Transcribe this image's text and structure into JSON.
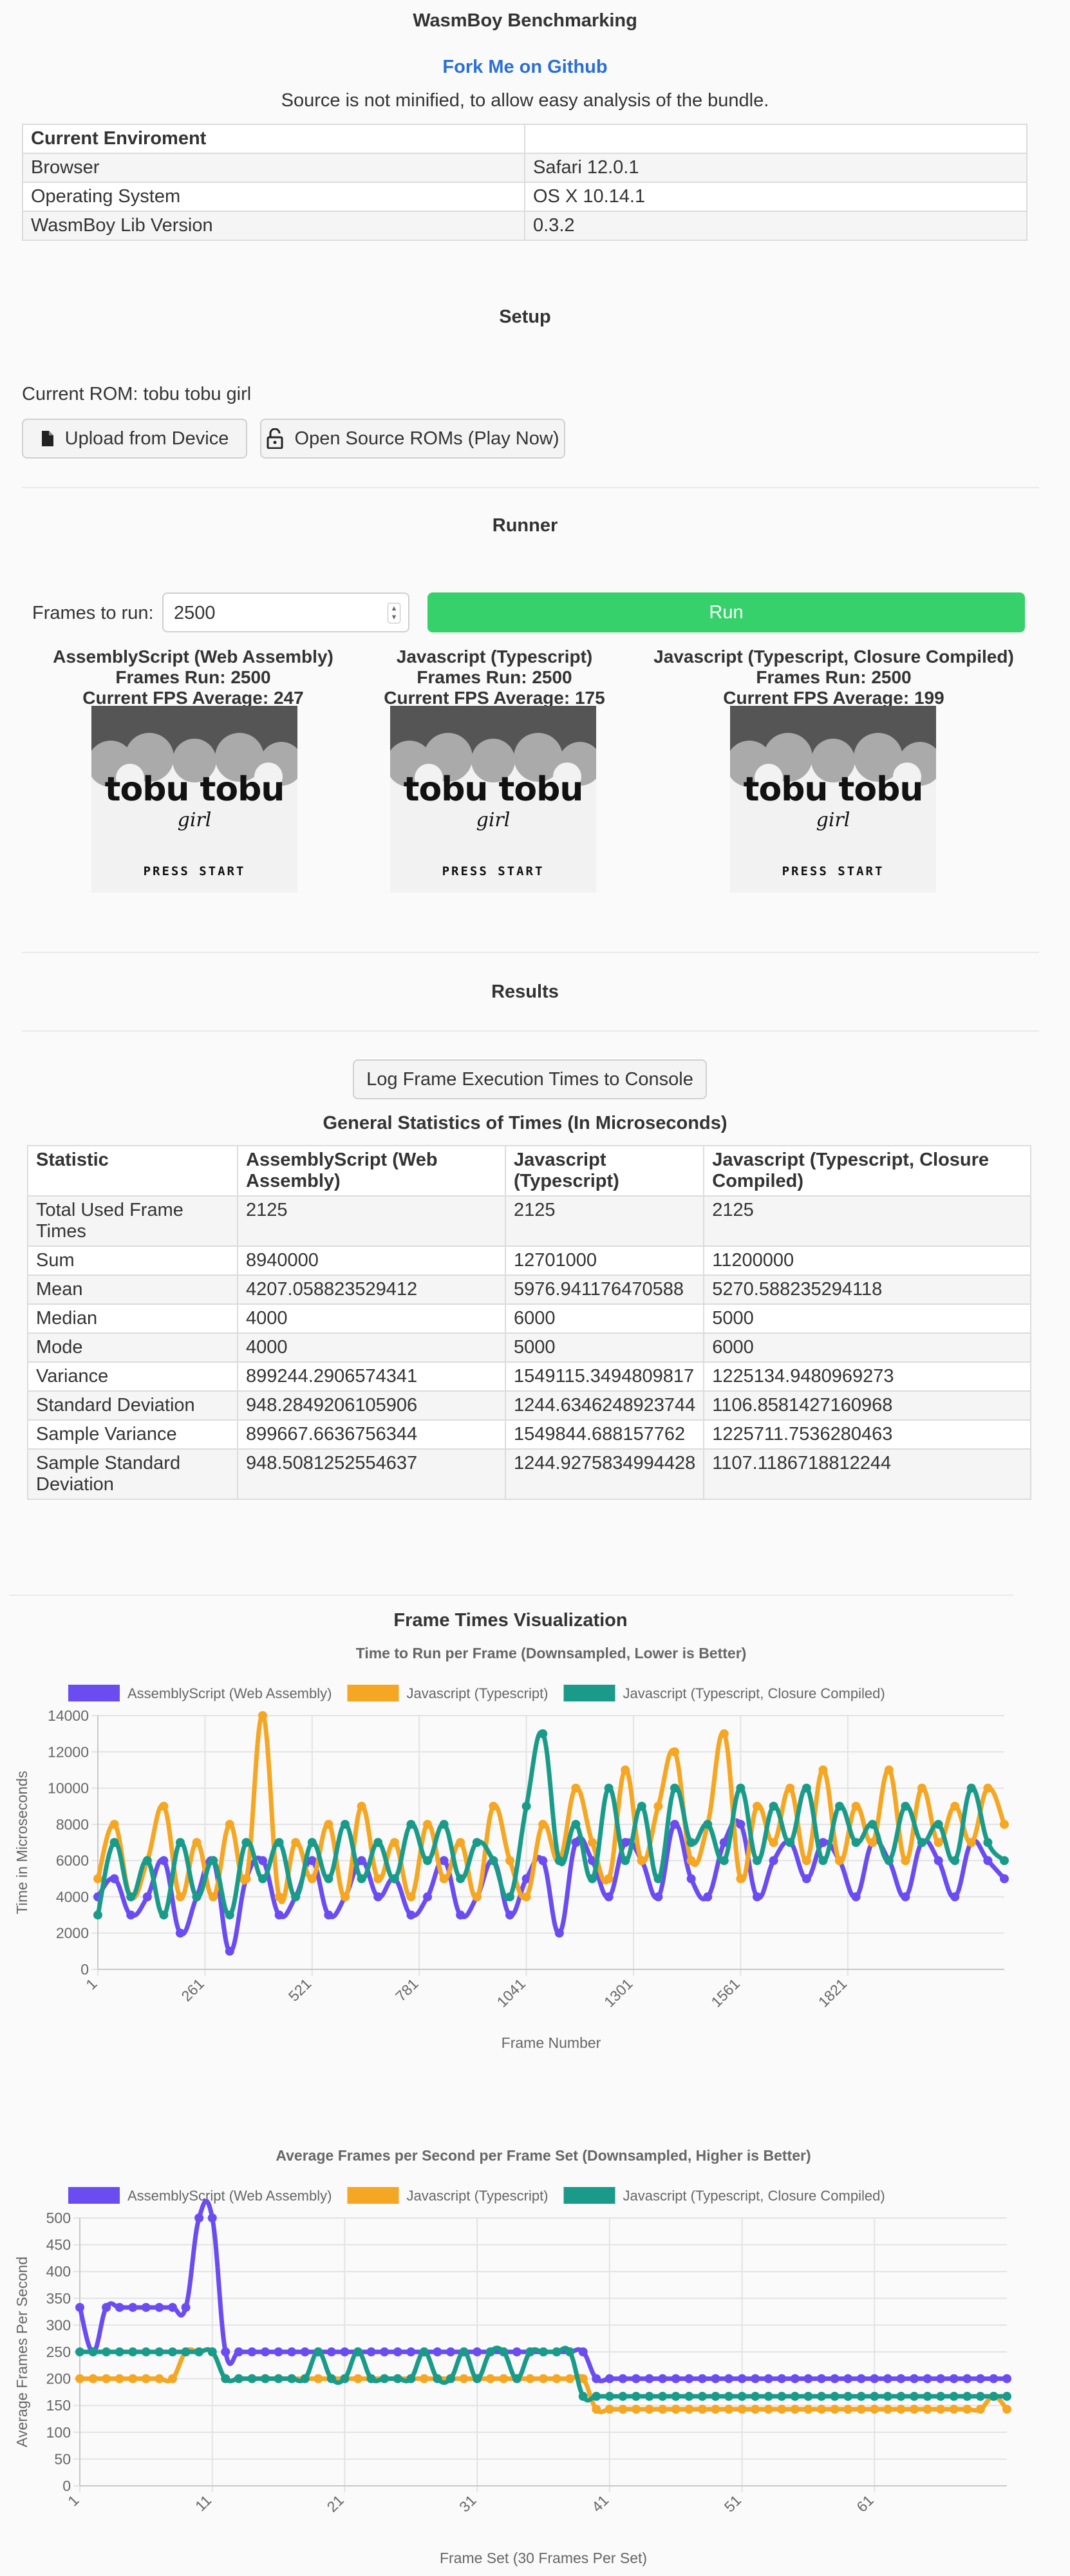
{
  "header": {
    "title": "WasmBoy Benchmarking",
    "fork_link": "Fork Me on Github",
    "note": "Source is not minified, to allow easy analysis of the bundle."
  },
  "environment": {
    "header": "Current Enviroment",
    "rows": [
      {
        "label": "Browser",
        "value": "Safari 12.0.1"
      },
      {
        "label": "Operating System",
        "value": "OS X 10.14.1"
      },
      {
        "label": "WasmBoy Lib Version",
        "value": "0.3.2"
      }
    ]
  },
  "setup": {
    "title": "Setup",
    "current_rom": "Current ROM: tobu tobu girl",
    "upload_button": "Upload from Device",
    "open_source_button": "Open Source ROMs (Play Now)"
  },
  "runner": {
    "title": "Runner",
    "frames_label": "Frames to run:",
    "frames_value": "2500",
    "run_button": "Run",
    "cores": [
      {
        "name": "AssemblyScript (Web Assembly)",
        "frames": "Frames Run: 2500",
        "fps": "Current FPS Average: 247"
      },
      {
        "name": "Javascript (Typescript)",
        "frames": "Frames Run: 2500",
        "fps": "Current FPS Average: 175"
      },
      {
        "name": "Javascript (Typescript, Closure Compiled)",
        "frames": "Frames Run: 2500",
        "fps": "Current FPS Average: 199"
      }
    ],
    "game_screen": {
      "title": "tobu tobu",
      "subtitle": "girl",
      "press": "PRESS START"
    }
  },
  "results": {
    "title": "Results",
    "log_button": "Log Frame Execution Times to Console",
    "stats_title": "General Statistics of Times (In Microseconds)",
    "headers": [
      "Statistic",
      "AssemblyScript (Web Assembly)",
      "Javascript (Typescript)",
      "Javascript (Typescript, Closure Compiled)"
    ],
    "rows": [
      [
        "Total Used Frame Times",
        "2125",
        "2125",
        "2125"
      ],
      [
        "Sum",
        "8940000",
        "12701000",
        "11200000"
      ],
      [
        "Mean",
        "4207.058823529412",
        "5976.941176470588",
        "5270.588235294118"
      ],
      [
        "Median",
        "4000",
        "6000",
        "5000"
      ],
      [
        "Mode",
        "4000",
        "5000",
        "6000"
      ],
      [
        "Variance",
        "899244.2906574341",
        "1549115.3494809817",
        "1225134.9480969273"
      ],
      [
        "Standard Deviation",
        "948.2849206105906",
        "1244.6346248923744",
        "1106.8581427160968"
      ],
      [
        "Sample Variance",
        "899667.6636756344",
        "1549844.688157762",
        "1225711.7536280463"
      ],
      [
        "Sample Standard Deviation",
        "948.5081252554637",
        "1244.9275834994428",
        "1107.1186718812244"
      ]
    ]
  },
  "visualization": {
    "title": "Frame Times Visualization"
  },
  "colors": {
    "wasm": "#6a4cf0",
    "ts": "#f5a623",
    "closure": "#1a9b8a",
    "run": "#36d16a",
    "link": "#2a6fd6"
  },
  "chart_data": [
    {
      "type": "line",
      "title": "Time to Run per Frame (Downsampled, Lower is Better)",
      "xlabel": "Frame Number",
      "ylabel": "Time in Microseconds",
      "ylim": [
        0,
        14000
      ],
      "yticks": [
        "0",
        "2000",
        "4000",
        "6000",
        "8000",
        "10000",
        "12000",
        "14000"
      ],
      "xticks": [
        "1",
        "261",
        "521",
        "781",
        "1041",
        "1301",
        "1561",
        "1821"
      ],
      "xlim": [
        1,
        2201
      ],
      "legend": "top",
      "grid": true,
      "series": [
        {
          "name": "AssemblyScript (Web Assembly)",
          "x": [
            1,
            41,
            81,
            121,
            161,
            201,
            241,
            281,
            321,
            361,
            401,
            441,
            481,
            521,
            561,
            601,
            641,
            681,
            721,
            761,
            801,
            841,
            881,
            921,
            961,
            1001,
            1041,
            1081,
            1121,
            1161,
            1201,
            1241,
            1281,
            1321,
            1361,
            1401,
            1441,
            1481,
            1521,
            1561,
            1601,
            1641,
            1681,
            1721,
            1761,
            1801,
            1841,
            1881,
            1921,
            1961,
            2001,
            2041,
            2081,
            2121,
            2161,
            2201
          ],
          "values": [
            4000,
            5000,
            3000,
            4000,
            6000,
            2000,
            4000,
            6000,
            1000,
            5000,
            6000,
            3000,
            4000,
            6000,
            3000,
            4000,
            6000,
            4000,
            5000,
            3000,
            4000,
            6000,
            3000,
            4000,
            6000,
            3000,
            5000,
            6000,
            2000,
            7000,
            6000,
            4000,
            7000,
            6000,
            4000,
            8000,
            5000,
            4000,
            7000,
            8000,
            4000,
            6000,
            7000,
            5000,
            7000,
            6000,
            4000,
            7000,
            6000,
            4000,
            7000,
            6000,
            4000,
            7000,
            6000,
            5000
          ]
        },
        {
          "name": "Javascript (Typescript)",
          "x": [
            1,
            41,
            81,
            121,
            161,
            201,
            241,
            281,
            321,
            361,
            401,
            441,
            481,
            521,
            561,
            601,
            641,
            681,
            721,
            761,
            801,
            841,
            881,
            921,
            961,
            1001,
            1041,
            1081,
            1121,
            1161,
            1201,
            1241,
            1281,
            1321,
            1361,
            1401,
            1441,
            1481,
            1521,
            1561,
            1601,
            1641,
            1681,
            1721,
            1761,
            1801,
            1841,
            1881,
            1921,
            1961,
            2001,
            2041,
            2081,
            2121,
            2161,
            2201
          ],
          "values": [
            5000,
            8000,
            4000,
            6000,
            9000,
            4000,
            7000,
            4000,
            8000,
            5000,
            14000,
            4000,
            7000,
            5000,
            8000,
            4000,
            9000,
            5000,
            7000,
            4000,
            8000,
            5000,
            7000,
            4000,
            9000,
            6000,
            4000,
            8000,
            6000,
            10000,
            7000,
            5000,
            11000,
            6000,
            9000,
            12000,
            6000,
            8000,
            13000,
            5000,
            9000,
            7000,
            10000,
            6000,
            11000,
            6000,
            9000,
            7000,
            11000,
            6000,
            10000,
            7000,
            9000,
            7000,
            10000,
            8000
          ]
        },
        {
          "name": "Javascript (Typescript, Closure Compiled)",
          "x": [
            1,
            41,
            81,
            121,
            161,
            201,
            241,
            281,
            321,
            361,
            401,
            441,
            481,
            521,
            561,
            601,
            641,
            681,
            721,
            761,
            801,
            841,
            881,
            921,
            961,
            1001,
            1041,
            1081,
            1121,
            1161,
            1201,
            1241,
            1281,
            1321,
            1361,
            1401,
            1441,
            1481,
            1521,
            1561,
            1601,
            1641,
            1681,
            1721,
            1761,
            1801,
            1841,
            1881,
            1921,
            1961,
            2001,
            2041,
            2081,
            2121,
            2161,
            2201
          ],
          "values": [
            3000,
            7000,
            4000,
            6000,
            3000,
            7000,
            4000,
            6000,
            3000,
            7000,
            5000,
            7000,
            4000,
            7000,
            5000,
            8000,
            5000,
            7000,
            5000,
            8000,
            6000,
            8000,
            5000,
            7000,
            6000,
            4000,
            9000,
            13000,
            6000,
            8000,
            5000,
            10000,
            6000,
            9000,
            5000,
            10000,
            7000,
            8000,
            6000,
            10000,
            6000,
            9000,
            7000,
            10000,
            6000,
            9000,
            7000,
            8000,
            6000,
            9000,
            7000,
            8000,
            6000,
            10000,
            7000,
            6000
          ]
        }
      ]
    },
    {
      "type": "line",
      "title": "Average Frames per Second per Frame Set (Downsampled, Higher is Better)",
      "xlabel": "Frame Set (30 Frames Per Set)",
      "ylabel": "Average Frames Per Second",
      "ylim": [
        0,
        500
      ],
      "yticks": [
        "0",
        "50",
        "100",
        "150",
        "200",
        "250",
        "300",
        "350",
        "400",
        "450",
        "500"
      ],
      "xticks": [
        "1",
        "11",
        "21",
        "31",
        "41",
        "51",
        "61"
      ],
      "xlim": [
        1,
        71
      ],
      "legend": "top",
      "grid": true,
      "series": [
        {
          "name": "AssemblyScript (Web Assembly)",
          "x": [
            1,
            2,
            3,
            4,
            5,
            6,
            7,
            8,
            9,
            10,
            11,
            12,
            13,
            14,
            15,
            16,
            17,
            18,
            19,
            20,
            21,
            22,
            23,
            24,
            25,
            26,
            27,
            28,
            29,
            30,
            31,
            32,
            33,
            34,
            35,
            36,
            37,
            38,
            39,
            40,
            41,
            42,
            43,
            44,
            45,
            46,
            47,
            48,
            49,
            50,
            51,
            52,
            53,
            54,
            55,
            56,
            57,
            58,
            59,
            60,
            61,
            62,
            63,
            64,
            65,
            66,
            67,
            68,
            69,
            70,
            71
          ],
          "values": [
            333,
            250,
            333,
            333,
            333,
            333,
            333,
            333,
            333,
            500,
            500,
            250,
            250,
            250,
            250,
            250,
            250,
            250,
            250,
            250,
            250,
            250,
            250,
            250,
            250,
            250,
            250,
            250,
            250,
            250,
            250,
            250,
            250,
            250,
            250,
            250,
            250,
            250,
            250,
            200,
            200,
            200,
            200,
            200,
            200,
            200,
            200,
            200,
            200,
            200,
            200,
            200,
            200,
            200,
            200,
            200,
            200,
            200,
            200,
            200,
            200,
            200,
            200,
            200,
            200,
            200,
            200,
            200,
            200,
            200,
            200
          ]
        },
        {
          "name": "Javascript (Typescript)",
          "x": [
            1,
            2,
            3,
            4,
            5,
            6,
            7,
            8,
            9,
            10,
            11,
            12,
            13,
            14,
            15,
            16,
            17,
            18,
            19,
            20,
            21,
            22,
            23,
            24,
            25,
            26,
            27,
            28,
            29,
            30,
            31,
            32,
            33,
            34,
            35,
            36,
            37,
            38,
            39,
            40,
            41,
            42,
            43,
            44,
            45,
            46,
            47,
            48,
            49,
            50,
            51,
            52,
            53,
            54,
            55,
            56,
            57,
            58,
            59,
            60,
            61,
            62,
            63,
            64,
            65,
            66,
            67,
            68,
            69,
            70,
            71
          ],
          "values": [
            200,
            200,
            200,
            200,
            200,
            200,
            200,
            200,
            250,
            250,
            250,
            200,
            200,
            200,
            200,
            200,
            200,
            200,
            200,
            200,
            200,
            200,
            200,
            200,
            200,
            200,
            200,
            200,
            200,
            200,
            200,
            200,
            200,
            200,
            200,
            200,
            200,
            200,
            200,
            143,
            143,
            143,
            143,
            143,
            143,
            143,
            143,
            143,
            143,
            143,
            143,
            143,
            143,
            143,
            143,
            143,
            143,
            143,
            143,
            143,
            143,
            143,
            143,
            143,
            143,
            143,
            143,
            143,
            143,
            167,
            143
          ]
        },
        {
          "name": "Javascript (Typescript, Closure Compiled)",
          "x": [
            1,
            2,
            3,
            4,
            5,
            6,
            7,
            8,
            9,
            10,
            11,
            12,
            13,
            14,
            15,
            16,
            17,
            18,
            19,
            20,
            21,
            22,
            23,
            24,
            25,
            26,
            27,
            28,
            29,
            30,
            31,
            32,
            33,
            34,
            35,
            36,
            37,
            38,
            39,
            40,
            41,
            42,
            43,
            44,
            45,
            46,
            47,
            48,
            49,
            50,
            51,
            52,
            53,
            54,
            55,
            56,
            57,
            58,
            59,
            60,
            61,
            62,
            63,
            64,
            65,
            66,
            67,
            68,
            69,
            70,
            71
          ],
          "values": [
            250,
            250,
            250,
            250,
            250,
            250,
            250,
            250,
            250,
            250,
            250,
            200,
            200,
            200,
            200,
            200,
            200,
            200,
            250,
            200,
            200,
            250,
            200,
            200,
            200,
            200,
            250,
            200,
            200,
            250,
            200,
            250,
            250,
            200,
            250,
            250,
            250,
            250,
            167,
            167,
            167,
            167,
            167,
            167,
            167,
            167,
            167,
            167,
            167,
            167,
            167,
            167,
            167,
            167,
            167,
            167,
            167,
            167,
            167,
            167,
            167,
            167,
            167,
            167,
            167,
            167,
            167,
            167,
            167,
            167,
            167
          ]
        }
      ]
    }
  ]
}
